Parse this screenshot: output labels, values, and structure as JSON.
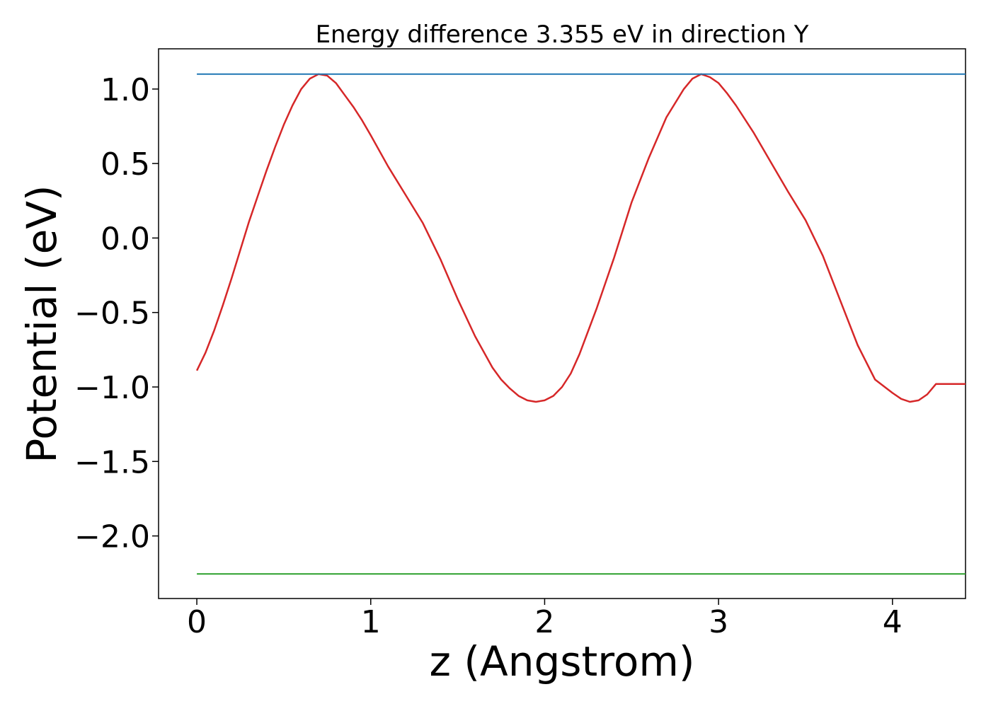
{
  "chart_data": {
    "type": "line",
    "title": "Energy difference 3.355 eV in direction Y",
    "xlabel": "z (Angstrom)",
    "ylabel": "Potential (eV)",
    "xlim": [
      -0.22,
      4.42
    ],
    "ylim": [
      -2.42,
      1.27
    ],
    "xticks": [
      0,
      1,
      2,
      3,
      4
    ],
    "xtick_labels": [
      "0",
      "1",
      "2",
      "3",
      "4"
    ],
    "yticks": [
      1.0,
      0.5,
      0.0,
      -0.5,
      -1.0,
      -1.5,
      -2.0
    ],
    "ytick_labels": [
      "1.0",
      "0.5",
      "0.0",
      "−0.5",
      "−1.0",
      "−1.5",
      "−2.0"
    ],
    "grid": false,
    "series": [
      {
        "color": "#d62728",
        "x": [
          0.0,
          0.05,
          0.1,
          0.15,
          0.2,
          0.25,
          0.3,
          0.35,
          0.4,
          0.45,
          0.5,
          0.55,
          0.6,
          0.65,
          0.7,
          0.75,
          0.8,
          0.85,
          0.9,
          0.95,
          1.0,
          1.1,
          1.2,
          1.3,
          1.4,
          1.5,
          1.6,
          1.7,
          1.75,
          1.8,
          1.85,
          1.9,
          1.95,
          2.0,
          2.05,
          2.1,
          2.15,
          2.2,
          2.3,
          2.4,
          2.5,
          2.6,
          2.7,
          2.8,
          2.85,
          2.9,
          2.95,
          3.0,
          3.05,
          3.1,
          3.2,
          3.3,
          3.4,
          3.5,
          3.6,
          3.7,
          3.8,
          3.9,
          4.0,
          4.05,
          4.1,
          4.15,
          4.2,
          4.25,
          4.3,
          4.35,
          4.42
        ],
        "y": [
          -0.89,
          -0.77,
          -0.62,
          -0.45,
          -0.27,
          -0.08,
          0.11,
          0.28,
          0.45,
          0.61,
          0.76,
          0.89,
          1.0,
          1.07,
          1.1,
          1.09,
          1.04,
          0.96,
          0.88,
          0.79,
          0.69,
          0.48,
          0.29,
          0.1,
          -0.14,
          -0.41,
          -0.66,
          -0.87,
          -0.95,
          -1.01,
          -1.06,
          -1.09,
          -1.1,
          -1.09,
          -1.06,
          -1.0,
          -0.91,
          -0.78,
          -0.47,
          -0.13,
          0.24,
          0.54,
          0.81,
          1.0,
          1.07,
          1.1,
          1.08,
          1.04,
          0.97,
          0.89,
          0.71,
          0.51,
          0.31,
          0.12,
          -0.12,
          -0.42,
          -0.72,
          -0.95,
          -1.04,
          -1.08,
          -1.1,
          -1.09,
          -1.05,
          -0.98,
          -0.98,
          -0.98,
          -0.98
        ]
      },
      {
        "color": "#1f77b4",
        "x": [
          0.0,
          4.42
        ],
        "y": [
          1.1,
          1.1
        ]
      },
      {
        "color": "#2ca02c",
        "x": [
          0.0,
          4.42
        ],
        "y": [
          -2.255,
          -2.255
        ]
      }
    ]
  }
}
